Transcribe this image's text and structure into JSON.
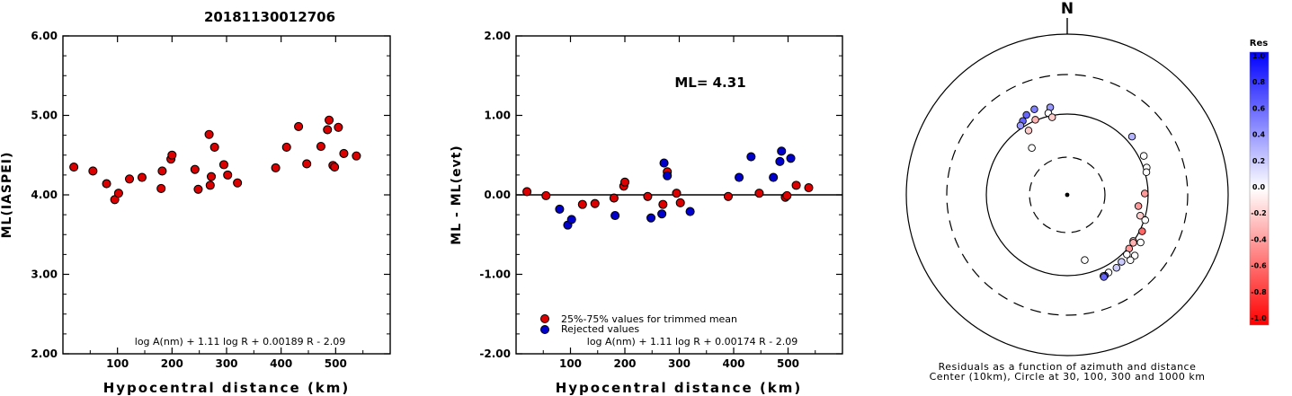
{
  "title": "20181130012706",
  "chart_data": [
    {
      "type": "scatter",
      "xlabel": "Hypocentral distance (km)",
      "ylabel": "ML(IASPEI)",
      "xlim": [
        0,
        600
      ],
      "ylim": [
        2.0,
        6.0
      ],
      "xticks": [
        "100",
        "200",
        "300",
        "400",
        "500"
      ],
      "yticks": [
        "2.00",
        "3.00",
        "4.00",
        "5.00",
        "6.00"
      ],
      "formula": "log A(nm) + 1.11 log R + 0.00189 R - 2.09",
      "points": [
        [
          20,
          4.35
        ],
        [
          55,
          4.3
        ],
        [
          80,
          4.14
        ],
        [
          95,
          3.94
        ],
        [
          102,
          4.02
        ],
        [
          122,
          4.2
        ],
        [
          145,
          4.22
        ],
        [
          180,
          4.08
        ],
        [
          182,
          4.3
        ],
        [
          198,
          4.45
        ],
        [
          200,
          4.5
        ],
        [
          242,
          4.32
        ],
        [
          248,
          4.07
        ],
        [
          268,
          4.76
        ],
        [
          270,
          4.12
        ],
        [
          272,
          4.23
        ],
        [
          278,
          4.6
        ],
        [
          295,
          4.38
        ],
        [
          302,
          4.25
        ],
        [
          320,
          4.15
        ],
        [
          390,
          4.34
        ],
        [
          410,
          4.6
        ],
        [
          432,
          4.86
        ],
        [
          447,
          4.39
        ],
        [
          473,
          4.61
        ],
        [
          485,
          4.82
        ],
        [
          488,
          4.94
        ],
        [
          495,
          4.37
        ],
        [
          498,
          4.35
        ],
        [
          505,
          4.85
        ],
        [
          515,
          4.52
        ],
        [
          538,
          4.49
        ]
      ]
    },
    {
      "type": "scatter",
      "xlabel": "Hypocentral distance (km)",
      "ylabel": "ML - ML(evt)",
      "xlim": [
        0,
        600
      ],
      "ylim": [
        -2.0,
        2.0
      ],
      "xticks": [
        "100",
        "200",
        "300",
        "400",
        "500"
      ],
      "yticks": [
        "-2.00",
        "-1.00",
        "0.00",
        "1.00",
        "2.00"
      ],
      "annotation": "ML= 4.31",
      "formula": "log A(nm) + 1.11 log R + 0.00174 R - 2.09",
      "legend": {
        "placement": "bottom-left",
        "trimmed": "25%-75% values for trimmed mean",
        "rejected": "Rejected values"
      },
      "series": [
        {
          "kind": "trimmed",
          "color": "#dd0000",
          "points": [
            [
              20,
              0.04
            ],
            [
              55,
              -0.01
            ],
            [
              122,
              -0.12
            ],
            [
              145,
              -0.11
            ],
            [
              180,
              -0.04
            ],
            [
              198,
              0.11
            ],
            [
              200,
              0.16
            ],
            [
              242,
              -0.02
            ],
            [
              270,
              -0.12
            ],
            [
              278,
              0.29
            ],
            [
              295,
              0.02
            ],
            [
              302,
              -0.1
            ],
            [
              390,
              -0.02
            ],
            [
              447,
              0.02
            ],
            [
              495,
              -0.03
            ],
            [
              498,
              -0.01
            ],
            [
              515,
              0.12
            ],
            [
              538,
              0.09
            ]
          ]
        },
        {
          "kind": "rejected",
          "color": "#0000cc",
          "points": [
            [
              80,
              -0.18
            ],
            [
              95,
              -0.38
            ],
            [
              102,
              -0.31
            ],
            [
              182,
              -0.26
            ],
            [
              248,
              -0.29
            ],
            [
              268,
              -0.24
            ],
            [
              272,
              0.4
            ],
            [
              278,
              0.24
            ],
            [
              320,
              -0.21
            ],
            [
              410,
              0.22
            ],
            [
              432,
              0.48
            ],
            [
              473,
              0.22
            ],
            [
              485,
              0.42
            ],
            [
              488,
              0.55
            ],
            [
              505,
              0.46
            ]
          ]
        }
      ]
    },
    {
      "type": "polar",
      "north_label": "N",
      "caption_line1": "Residuals as a function of azimuth and distance",
      "caption_line2": "Center (10km), Circle at 30, 100, 300 and 1000 km",
      "colorbar_title": "Res",
      "colorbar_ticks": [
        "1.0",
        "0.8",
        "0.6",
        "0.4",
        "0.2",
        "0.0",
        "-0.2",
        "-0.4",
        "-0.6",
        "-0.8",
        "-1.0"
      ],
      "points": [
        [
          -27,
          128,
          0.6
        ],
        [
          -31,
          116,
          0.6
        ],
        [
          -34,
          108,
          0.4
        ],
        [
          -21,
          135,
          0.5
        ],
        [
          -11,
          126,
          0.4
        ],
        [
          -13,
          109,
          0.0
        ],
        [
          -23,
          102,
          -0.3
        ],
        [
          -31,
          85,
          -0.2
        ],
        [
          -11,
          95,
          -0.2
        ],
        [
          -37,
          54,
          0.0
        ],
        [
          48,
          119,
          0.3
        ],
        [
          63,
          115,
          0.0
        ],
        [
          71,
          109,
          0.0
        ],
        [
          74,
          104,
          0.0
        ],
        [
          89,
          91,
          -0.4
        ],
        [
          99,
          78,
          -0.4
        ],
        [
          106,
          87,
          -0.2
        ],
        [
          108,
          103,
          0.0
        ],
        [
          123,
          120,
          0.0
        ],
        [
          125,
          99,
          -0.3
        ],
        [
          126,
          102,
          -0.3
        ],
        [
          131,
          103,
          -0.4
        ],
        [
          135,
          110,
          0.0
        ],
        [
          132,
          132,
          0.0
        ],
        [
          136,
          132,
          0.0
        ],
        [
          141,
          116,
          0.2
        ],
        [
          146,
          122,
          0.2
        ],
        [
          152,
          122,
          0.0
        ],
        [
          155,
          126,
          0.7
        ],
        [
          156,
          125,
          0.3
        ],
        [
          156,
          129,
          0.6
        ],
        [
          165,
          69,
          0.0
        ],
        [
          116,
          107,
          -0.6
        ]
      ]
    }
  ]
}
